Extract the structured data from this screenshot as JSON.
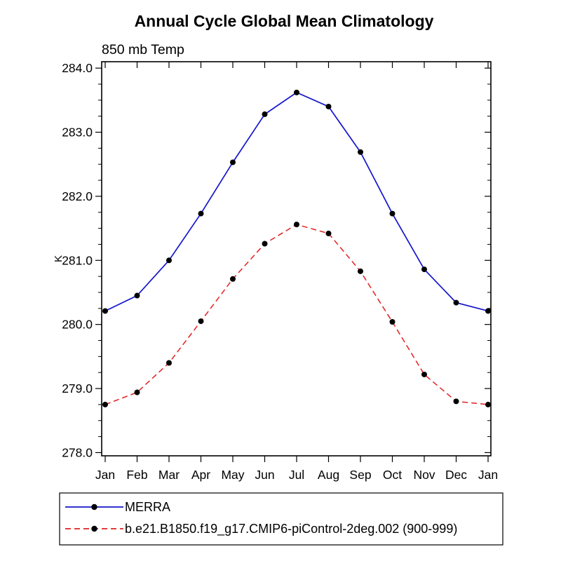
{
  "figure": {
    "title": "Annual Cycle Global Mean Climatology",
    "subtitle": "850 mb Temp",
    "ylabel": "K"
  },
  "chart_data": {
    "type": "line",
    "title": "Annual Cycle Global Mean Climatology",
    "subtitle": "850 mb Temp",
    "xlabel": "",
    "ylabel": "K",
    "grid": false,
    "legend_position": "bottom-left-box",
    "categories": [
      "Jan",
      "Feb",
      "Mar",
      "Apr",
      "May",
      "Jun",
      "Jul",
      "Aug",
      "Sep",
      "Oct",
      "Nov",
      "Dec",
      "Jan"
    ],
    "y_ticks": [
      278.0,
      279.0,
      280.0,
      281.0,
      282.0,
      283.0,
      284.0
    ],
    "ylim": [
      277.95,
      284.1
    ],
    "series": [
      {
        "name": "MERRA",
        "color": "#1515cd",
        "style": "solid",
        "marker": "filled-circle",
        "marker_color": "#000000",
        "values": [
          280.21,
          280.45,
          281.0,
          281.73,
          282.53,
          283.28,
          283.62,
          283.4,
          282.69,
          281.73,
          280.86,
          280.34,
          280.21
        ]
      },
      {
        "name": "b.e21.B1850.f19_g17.CMIP6-piControl-2deg.002 (900-999)",
        "color": "#e02020",
        "style": "dashed",
        "marker": "filled-circle",
        "marker_color": "#000000",
        "values": [
          278.75,
          278.94,
          279.4,
          280.05,
          280.71,
          281.26,
          281.56,
          281.42,
          280.83,
          280.04,
          279.22,
          278.8,
          278.75
        ]
      }
    ]
  }
}
